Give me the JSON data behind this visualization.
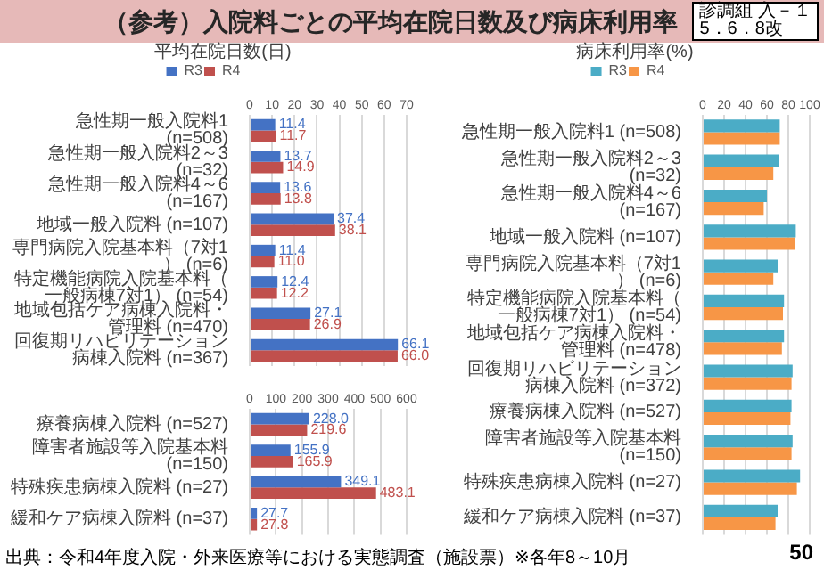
{
  "chart_data": [
    {
      "type": "bar",
      "orientation": "horizontal",
      "title": "（参考）入院料ごとの平均在院日数及び病床利用率",
      "subtitle": "平均在院日数(日)",
      "categories": [
        "急性期一般入院料1 (n=508)",
        "急性期一般入院料2～3 (n=32)",
        "急性期一般入院料4～6 (n=167)",
        "地域一般入院料 (n=107)",
        "専門病院入院基本料（7対1） (n=6)",
        "特定機能病院入院基本料（一般病棟7対1） (n=54)",
        "地域包括ケア病棟入院料・管理料 (n=470)",
        "回復期リハビリテーション病棟入院料 (n=367)"
      ],
      "series": [
        {
          "name": "R3",
          "color": "#4472c4",
          "values": [
            11.4,
            13.7,
            13.6,
            37.4,
            11.4,
            12.4,
            27.1,
            66.1
          ],
          "value_labels": [
            "11.4",
            "13.7",
            "13.6",
            "37.4",
            "11.4",
            "12.4",
            "27.1",
            "66.1"
          ]
        },
        {
          "name": "R4",
          "color": "#c0504d",
          "values": [
            11.7,
            14.9,
            13.8,
            38.1,
            11.0,
            12.2,
            26.9,
            66.0
          ],
          "value_labels": [
            "11.7",
            "14.9",
            "13.8",
            "38.1",
            "11.0",
            "12.2",
            "26.9",
            "66.0"
          ]
        }
      ],
      "xlim": [
        0,
        70
      ],
      "xticks": [
        0,
        10,
        20,
        30,
        40,
        50,
        60,
        70
      ],
      "grid": "x",
      "legend": "top",
      "annotations": [
        "診調組 入－１\n5．6．8改",
        "出典：令和4年度入院・外来医療等における実態調査（施設票）※各年8～10月",
        "50"
      ]
    },
    {
      "type": "bar",
      "orientation": "horizontal",
      "categories": [
        "療養病棟入院料 (n=527)",
        "障害者施設等入院基本料 (n=150)",
        "特殊疾患病棟入院料 (n=27)",
        "緩和ケア病棟入院料 (n=37)"
      ],
      "series": [
        {
          "color": "#4472c4",
          "values": [
            228.0,
            155.9,
            349.1,
            27.7
          ],
          "value_labels": [
            "228.0",
            "155.9",
            "349.1",
            "27.7"
          ]
        },
        {
          "color": "#c0504d",
          "values": [
            219.6,
            165.9,
            483.1,
            27.8
          ],
          "value_labels": [
            "219.6",
            "165.9",
            "483.1",
            "27.8"
          ]
        }
      ],
      "xlim": [
        0,
        600
      ],
      "xticks": [
        0,
        100,
        200,
        300,
        400,
        500,
        600
      ],
      "grid": "x"
    },
    {
      "type": "bar",
      "orientation": "horizontal",
      "title": "病床利用率(%)",
      "categories": [
        "急性期一般入院料1 (n=508)",
        "急性期一般入院料2～3 (n=32)",
        "急性期一般入院料4～6 (n=167)",
        "地域一般入院料 (n=107)",
        "専門病院入院基本料（7対1） (n=6)",
        "特定機能病院入院基本料（一般病棟7対1） (n=54)",
        "地域包括ケア病棟入院料・管理料 (n=478)",
        "回復期リハビリテーション病棟入院料 (n=372)",
        "療養病棟入院料 (n=527)",
        "障害者施設等入院基本料 (n=150)",
        "特殊疾患病棟入院料 (n=27)",
        "緩和ケア病棟入院料 (n=37)"
      ],
      "series": [
        {
          "name": "R3",
          "color": "#4bacc6",
          "values": [
            72,
            71,
            60,
            87,
            70,
            76,
            76,
            84,
            83,
            84,
            91,
            70
          ]
        },
        {
          "name": "R4",
          "color": "#f79646",
          "values": [
            72,
            66,
            57,
            86,
            66,
            75,
            74,
            83,
            82,
            83,
            88,
            68
          ]
        }
      ],
      "xlim": [
        0,
        100
      ],
      "xticks": [
        0,
        20,
        40,
        60,
        80,
        100
      ],
      "grid": "x",
      "legend": "top"
    }
  ]
}
